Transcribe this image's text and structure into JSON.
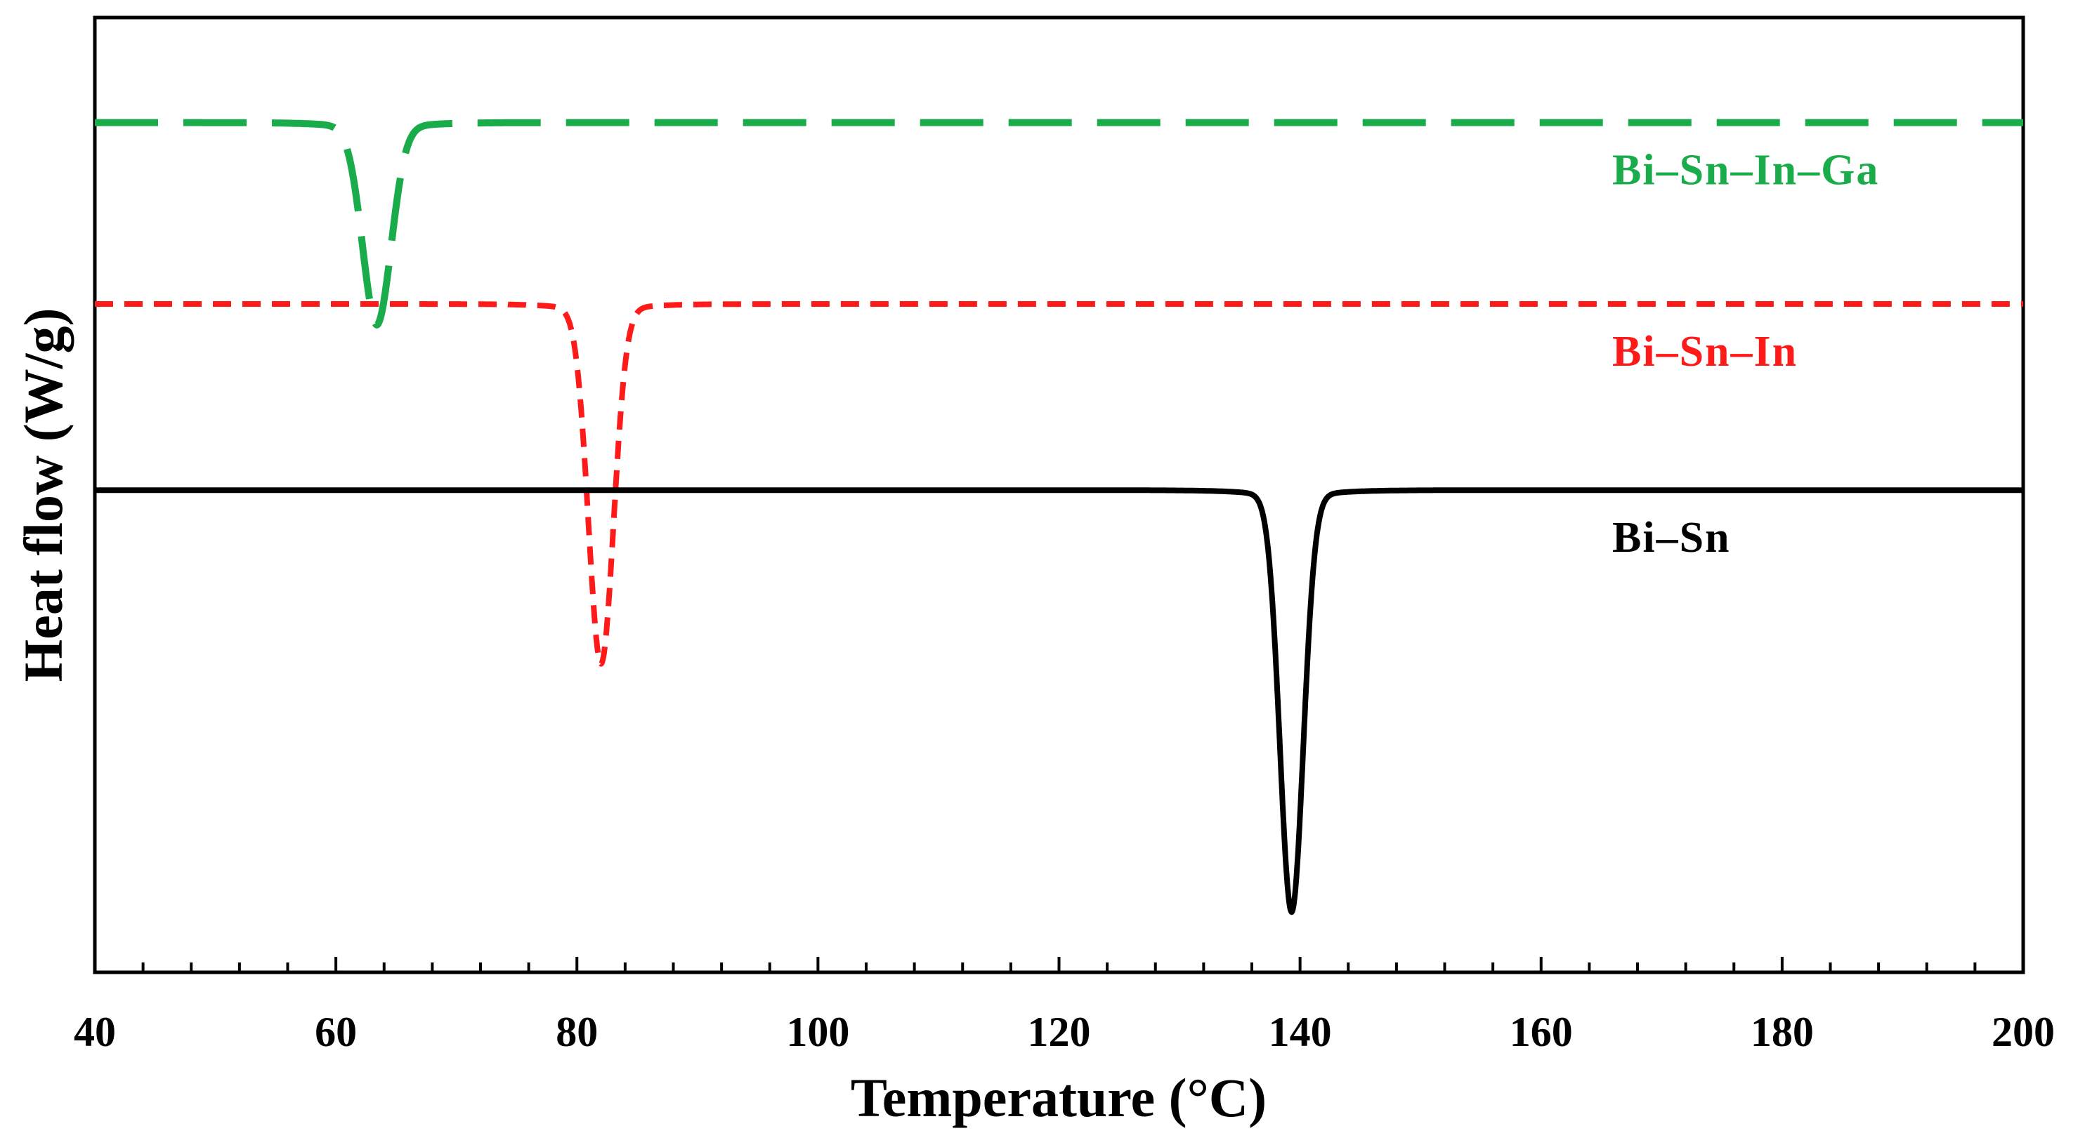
{
  "chart_data": {
    "type": "line",
    "title": "",
    "xlabel": "Temperature (°C)",
    "ylabel": "Heat flow (W/g)",
    "xlim": [
      40,
      200
    ],
    "ylim": [
      0,
      10
    ],
    "x_ticks": [
      "40",
      "60",
      "80",
      "100",
      "120",
      "140",
      "160",
      "180",
      "200"
    ],
    "grid": false,
    "series": [
      {
        "name": "Bi–Sn–In–Ga",
        "color": "#1aab4b",
        "style": "long-dash",
        "baseline": 8.9,
        "peak_x": 63.4,
        "peak_depth": 2.0,
        "peak_width": 1.6
      },
      {
        "name": "Bi–Sn–In",
        "color": "#ff1a1a",
        "style": "short-dash",
        "baseline": 7.0,
        "peak_x": 82.0,
        "peak_depth": 3.65,
        "peak_width": 1.4
      },
      {
        "name": "Bi–Sn",
        "color": "#000000",
        "style": "solid",
        "baseline": 5.05,
        "peak_x": 139.3,
        "peak_depth": 4.3,
        "peak_width": 1.3
      }
    ]
  }
}
